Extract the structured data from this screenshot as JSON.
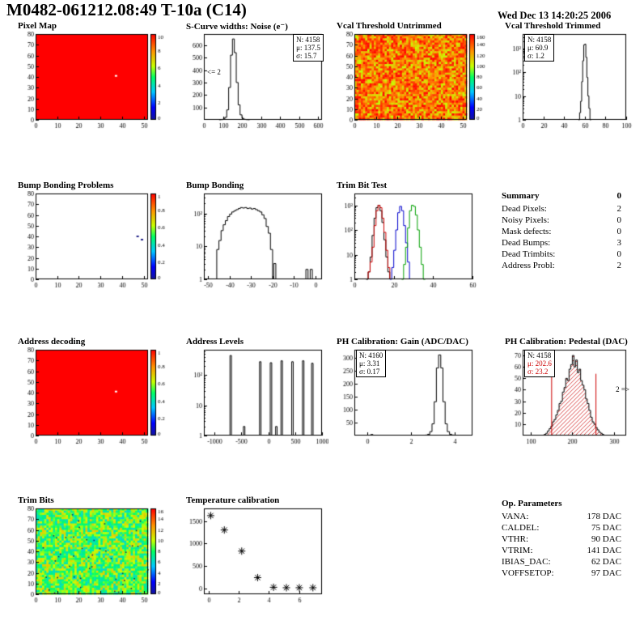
{
  "header": {
    "title": "M0482-061212.08:49 T-10a (C14)",
    "date": "Wed Dec 13 14:20:25 2006"
  },
  "summary": {
    "heading": "Summary",
    "heading_value": "0",
    "rows": [
      {
        "label": "Dead Pixels:",
        "value": "2"
      },
      {
        "label": "Noisy Pixels:",
        "value": "0"
      },
      {
        "label": "Mask defects:",
        "value": "0"
      },
      {
        "label": "Dead Bumps:",
        "value": "3"
      },
      {
        "label": "Dead Trimbits:",
        "value": "0"
      },
      {
        "label": "Address Probl:",
        "value": "2"
      }
    ]
  },
  "op_parameters": {
    "heading": "Op. Parameters",
    "rows": [
      {
        "label": "VANA:",
        "value": "178 DAC"
      },
      {
        "label": "CALDEL:",
        "value": "75 DAC"
      },
      {
        "label": "VTHR:",
        "value": "90 DAC"
      },
      {
        "label": "VTRIM:",
        "value": "141 DAC"
      },
      {
        "label": "IBIAS_DAC:",
        "value": "62 DAC"
      },
      {
        "label": "VOFFSETOP:",
        "value": "97 DAC"
      }
    ]
  },
  "chart_data": [
    {
      "id": "pixel-map",
      "type": "heatmap",
      "title": "Pixel Map",
      "xlim": [
        0,
        52
      ],
      "ylim": [
        0,
        80
      ],
      "xticks": [
        0,
        10,
        20,
        30,
        40,
        50
      ],
      "yticks": [
        0,
        10,
        20,
        30,
        40,
        50,
        60,
        70,
        80
      ],
      "z": {
        "mode": "uniform",
        "frac": 1.0
      },
      "points": [
        {
          "x": 37,
          "y": 41,
          "color": "#ffffff"
        }
      ],
      "colorbar": {
        "min": 0,
        "max": 10,
        "ticks": [
          0,
          2,
          4,
          6,
          8,
          10
        ]
      },
      "seed": 1
    },
    {
      "id": "scurve-noise",
      "type": "histogram",
      "title": "S-Curve widths: Noise (e⁻)",
      "xlim": [
        0,
        620
      ],
      "xticks": [
        0,
        100,
        200,
        300,
        400,
        500,
        600
      ],
      "ylim": [
        0,
        690
      ],
      "yticks": [
        100,
        200,
        300,
        400,
        500,
        600
      ],
      "logy": false,
      "color": "#000000",
      "bins": {
        "start": 80,
        "step": 10,
        "counts": [
          1,
          2,
          6,
          20,
          80,
          260,
          520,
          650,
          540,
          300,
          120,
          40,
          12,
          4,
          2,
          1
        ]
      },
      "stats": {
        "n": "N: 4158",
        "mu": "μ: 137.5",
        "sigma": "σ: 15.7"
      },
      "annotation": "<= 2"
    },
    {
      "id": "vcal-untrimmed",
      "type": "heatmap",
      "title": "Vcal Threshold Untrimmed",
      "xlim": [
        0,
        52
      ],
      "ylim": [
        0,
        80
      ],
      "xticks": [
        0,
        10,
        20,
        30,
        40,
        50
      ],
      "yticks": [
        0,
        10,
        20,
        30,
        40,
        50,
        60,
        70,
        80
      ],
      "z": {
        "mode": "noise",
        "fmin": 0.62,
        "fmax": 1.0,
        "pow": 0.8
      },
      "colorbar": {
        "min": 0,
        "max": 160,
        "ticks": [
          0,
          20,
          40,
          60,
          80,
          100,
          120,
          140,
          160
        ]
      },
      "seed": 7
    },
    {
      "id": "vcal-trimmed",
      "type": "histogram",
      "title": "Vcal Threshold Trimmed",
      "xlim": [
        0,
        100
      ],
      "xticks": [
        0,
        20,
        40,
        60,
        80,
        100
      ],
      "ylim": [
        1,
        4000
      ],
      "logy": true,
      "color": "#000000",
      "bins": {
        "start": 54,
        "step": 1,
        "counts": [
          1,
          2,
          6,
          40,
          300,
          1400,
          1500,
          420,
          60,
          10,
          3,
          1
        ]
      },
      "stats": {
        "n": "N: 4158",
        "mu": "μ: 60.9",
        "sigma": "σ: 1.2"
      }
    },
    {
      "id": "bump-problems",
      "type": "heatmap",
      "title": "Bump Bonding Problems",
      "xlim": [
        0,
        52
      ],
      "ylim": [
        0,
        80
      ],
      "xticks": [
        0,
        10,
        20,
        30,
        40,
        50
      ],
      "yticks": [
        0,
        10,
        20,
        30,
        40,
        50,
        60,
        70,
        80
      ],
      "z": {
        "mode": "empty"
      },
      "points": [
        {
          "x": 47,
          "y": 40,
          "color": "#222288"
        },
        {
          "x": 49,
          "y": 37,
          "color": "#222288"
        }
      ],
      "colorbar": {
        "min": 0,
        "max": 1,
        "ticks": [
          0,
          0.2,
          0.4,
          0.6,
          0.8,
          1
        ]
      },
      "seed": 3
    },
    {
      "id": "bump-bonding",
      "type": "histogram",
      "title": "Bump Bonding",
      "xlim": [
        -52,
        3
      ],
      "xticks": [
        -50,
        -40,
        -30,
        -20,
        -10,
        0
      ],
      "ylim": [
        1,
        400
      ],
      "logy": true,
      "color": "#000000",
      "bins": {
        "start": -46,
        "step": 1,
        "counts": [
          8,
          15,
          30,
          45,
          60,
          80,
          95,
          110,
          120,
          130,
          140,
          150,
          145,
          150,
          140,
          145,
          135,
          140,
          130,
          120,
          110,
          90,
          70,
          40,
          25,
          8
        ]
      },
      "impulses": [
        [
          -19,
          3
        ],
        [
          -4,
          2
        ],
        [
          -2,
          2
        ]
      ],
      "impulse_halfwidth": 0.5
    },
    {
      "id": "trim-bit-test",
      "type": "multi-histogram",
      "title": "Trim Bit Test",
      "xlim": [
        0,
        60
      ],
      "xticks": [
        0,
        20,
        40,
        60
      ],
      "ylim": [
        1,
        3000
      ],
      "logy": true,
      "series": [
        {
          "name": "trim-black",
          "color": "#000000",
          "bins": {
            "start": 6,
            "step": 1,
            "counts": [
              1,
              2,
              8,
              60,
              300,
              800,
              1000,
              600,
              200,
              40,
              8,
              2
            ]
          }
        },
        {
          "name": "trim-red",
          "color": "#cc0000",
          "bins": {
            "start": 7,
            "step": 1,
            "counts": [
              2,
              5,
              20,
              150,
              600,
              1000,
              800,
              300,
              80,
              15,
              3
            ]
          }
        },
        {
          "name": "trim-blue",
          "color": "#0000cc",
          "bins": {
            "start": 18,
            "step": 1,
            "counts": [
              1,
              3,
              15,
              100,
              500,
              900,
              600,
              150,
              30,
              5
            ]
          }
        },
        {
          "name": "trim-green",
          "color": "#00a000",
          "bins": {
            "start": 24,
            "step": 1,
            "counts": [
              1,
              4,
              20,
              120,
              600,
              1000,
              900,
              400,
              100,
              20,
              4,
              1
            ]
          }
        }
      ]
    },
    {
      "id": "address-decoding",
      "type": "heatmap",
      "title": "Address decoding",
      "xlim": [
        0,
        52
      ],
      "ylim": [
        0,
        80
      ],
      "xticks": [
        0,
        10,
        20,
        30,
        40,
        50
      ],
      "yticks": [
        0,
        10,
        20,
        30,
        40,
        50,
        60,
        70,
        80
      ],
      "z": {
        "mode": "uniform",
        "frac": 1.0
      },
      "points": [
        {
          "x": 37,
          "y": 41,
          "color": "#ffffff"
        }
      ],
      "colorbar": {
        "min": 0,
        "max": 1,
        "ticks": [
          0,
          0.2,
          0.4,
          0.6,
          0.8,
          1
        ]
      },
      "seed": 5
    },
    {
      "id": "address-levels",
      "type": "impulse",
      "title": "Address Levels",
      "xlim": [
        -1200,
        1000
      ],
      "xticks": [
        -1000,
        -500,
        0,
        500,
        1000
      ],
      "ylim": [
        1,
        700
      ],
      "logy": true,
      "color": "#000000",
      "impulses": [
        [
          -700,
          450
        ],
        [
          -150,
          280
        ],
        [
          50,
          260
        ],
        [
          250,
          300
        ],
        [
          450,
          280
        ],
        [
          650,
          300
        ],
        [
          820,
          250
        ],
        [
          -450,
          2
        ],
        [
          150,
          2
        ]
      ],
      "impulse_halfwidth": 14
    },
    {
      "id": "ph-gain",
      "type": "histogram",
      "title": "PH Calibration: Gain (ADC/DAC)",
      "xlim": [
        -0.6,
        4.8
      ],
      "xticks": [
        0,
        2,
        4
      ],
      "ylim": [
        0,
        330
      ],
      "yticks": [
        50,
        100,
        150,
        200,
        250,
        300
      ],
      "logy": false,
      "color": "#000000",
      "bins": {
        "start": 2.65,
        "step": 0.1,
        "counts": [
          2,
          5,
          15,
          45,
          130,
          260,
          310,
          260,
          130,
          45,
          15,
          5,
          2
        ]
      },
      "impulses": [
        [
          0.2,
          4
        ]
      ],
      "impulse_halfwidth": 0.05,
      "stats": {
        "n": "N: 4160",
        "mu": "μ: 3.31",
        "sigma": "σ: 0.17"
      }
    },
    {
      "id": "ph-pedestal",
      "type": "histogram",
      "title": "PH Calibration: Pedestal (DAC)",
      "xlim": [
        80,
        330
      ],
      "xticks": [
        100,
        200,
        300
      ],
      "ylim": [
        0,
        75
      ],
      "yticks": [
        10,
        20,
        30,
        40,
        50,
        60,
        70
      ],
      "logy": false,
      "color": "#000000",
      "fill": "hatch",
      "fill_color": "#cc0000",
      "bins": {
        "start": 132,
        "step": 4,
        "counts": [
          1,
          2,
          4,
          6,
          8,
          12,
          14,
          18,
          22,
          28,
          30,
          38,
          42,
          50,
          48,
          58,
          62,
          70,
          60,
          66,
          55,
          58,
          48,
          44,
          40,
          32,
          28,
          22,
          16,
          12,
          10,
          7,
          5,
          3,
          2,
          1
        ]
      },
      "vlines": [
        {
          "x": 150
        },
        {
          "x": 257
        }
      ],
      "vline_color": "#cc0000",
      "stats": {
        "n": "N: 4158",
        "mu": "μ: 202.6",
        "sigma": "σ: 23.2"
      },
      "annotation": "2 =>"
    },
    {
      "id": "trim-bits",
      "type": "heatmap",
      "title": "Trim Bits",
      "xlim": [
        0,
        52
      ],
      "ylim": [
        0,
        80
      ],
      "xticks": [
        0,
        10,
        20,
        30,
        40,
        50
      ],
      "yticks": [
        0,
        10,
        20,
        30,
        40,
        50,
        60,
        70,
        80
      ],
      "z": {
        "mode": "noise",
        "fmin": 0.38,
        "fmax": 0.72,
        "pow": 1,
        "specks": {
          "n": 45,
          "color": "#113366"
        }
      },
      "colorbar": {
        "min": 0,
        "max": 16,
        "ticks": [
          0,
          2,
          4,
          6,
          8,
          10,
          12,
          14,
          16
        ]
      },
      "seed": 13
    },
    {
      "id": "temperature-calibration",
      "type": "scatter",
      "title": "Temperature calibration",
      "xlim": [
        -0.3,
        7.5
      ],
      "xticks": [
        0,
        2,
        4,
        6
      ],
      "ylim": [
        -130,
        1780
      ],
      "yticks": [
        0,
        500,
        1000,
        1500
      ],
      "logy": false,
      "marker": "asterisk",
      "color": "#000000",
      "points": [
        [
          0.15,
          1620
        ],
        [
          1.05,
          1300
        ],
        [
          2.2,
          830
        ],
        [
          3.25,
          240
        ],
        [
          4.3,
          25
        ],
        [
          5.15,
          15
        ],
        [
          6.0,
          15
        ],
        [
          6.9,
          15
        ]
      ]
    }
  ]
}
